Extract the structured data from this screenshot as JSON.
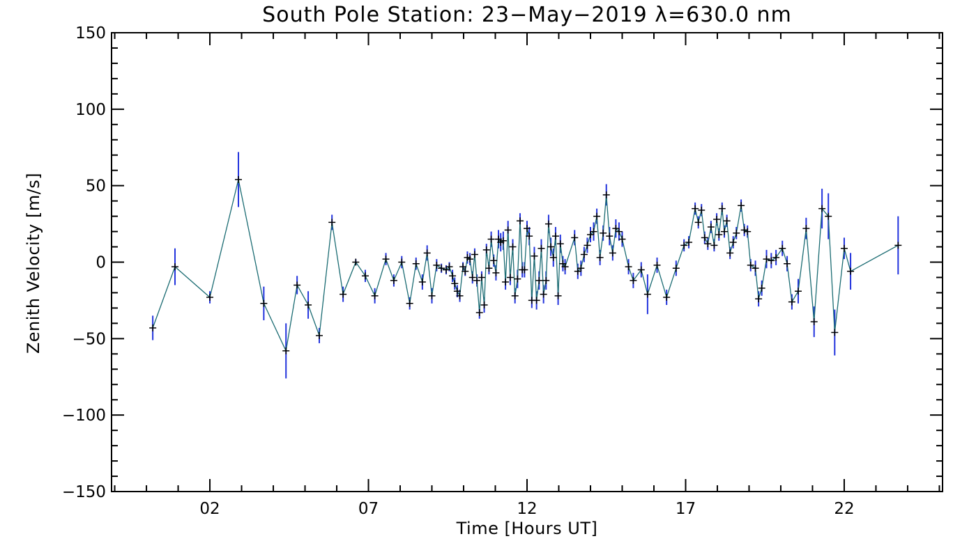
{
  "chart_data": {
    "type": "line",
    "title": "South Pole Station: 23−May−2019 λ=630.0 nm",
    "xlabel": "Time [Hours UT]",
    "ylabel": "Zenith Velocity [m/s]",
    "xlim": [
      -1.1,
      25.1
    ],
    "ylim": [
      -150,
      150
    ],
    "x_ticks": [
      2,
      7,
      12,
      17,
      22
    ],
    "x_tick_labels": [
      "02",
      "07",
      "12",
      "17",
      "22"
    ],
    "y_ticks": [
      -150,
      -100,
      -50,
      0,
      50,
      100,
      150
    ],
    "y_tick_labels": [
      "−150",
      "−100",
      "−50",
      "0",
      "50",
      "100",
      "150"
    ],
    "line_color": "#1a6b72",
    "error_color": "#2233dd",
    "marker_color": "#000000",
    "series": [
      {
        "name": "Zenith Velocity",
        "points": [
          [
            0.2,
            -43,
            8
          ],
          [
            0.9,
            -3,
            12
          ],
          [
            2.0,
            -23,
            4
          ],
          [
            2.9,
            54,
            18
          ],
          [
            3.7,
            -27,
            11
          ],
          [
            4.4,
            -58,
            18
          ],
          [
            4.75,
            -15,
            6
          ],
          [
            5.1,
            -28,
            9
          ],
          [
            5.45,
            -48,
            5
          ],
          [
            5.85,
            26,
            5
          ],
          [
            6.2,
            -21,
            5
          ],
          [
            6.6,
            0,
            2
          ],
          [
            6.9,
            -9,
            4
          ],
          [
            7.2,
            -22,
            5
          ],
          [
            7.55,
            2,
            4
          ],
          [
            7.8,
            -12,
            4
          ],
          [
            8.05,
            0,
            4
          ],
          [
            8.3,
            -27,
            4
          ],
          [
            8.5,
            -1,
            4
          ],
          [
            8.7,
            -13,
            5
          ],
          [
            8.85,
            6,
            5
          ],
          [
            9.0,
            -22,
            5
          ],
          [
            9.15,
            -2,
            4
          ],
          [
            9.3,
            -4,
            3
          ],
          [
            9.45,
            -5,
            3
          ],
          [
            9.55,
            -3,
            3
          ],
          [
            9.65,
            -9,
            4
          ],
          [
            9.72,
            -14,
            4
          ],
          [
            9.8,
            -19,
            4
          ],
          [
            9.88,
            -22,
            4
          ],
          [
            9.98,
            -3,
            3
          ],
          [
            10.05,
            -6,
            3
          ],
          [
            10.12,
            3,
            4
          ],
          [
            10.2,
            2,
            4
          ],
          [
            10.28,
            -10,
            4
          ],
          [
            10.35,
            5,
            4
          ],
          [
            10.42,
            -12,
            4
          ],
          [
            10.5,
            -33,
            4
          ],
          [
            10.57,
            -10,
            4
          ],
          [
            10.65,
            -28,
            5
          ],
          [
            10.72,
            8,
            4
          ],
          [
            10.8,
            -4,
            4
          ],
          [
            10.87,
            15,
            5
          ],
          [
            10.95,
            1,
            4
          ],
          [
            11.02,
            -7,
            5
          ],
          [
            11.1,
            15,
            6
          ],
          [
            11.17,
            13,
            6
          ],
          [
            11.25,
            14,
            6
          ],
          [
            11.32,
            -13,
            5
          ],
          [
            11.4,
            21,
            6
          ],
          [
            11.47,
            -10,
            5
          ],
          [
            11.55,
            10,
            5
          ],
          [
            11.62,
            -22,
            5
          ],
          [
            11.7,
            -11,
            6
          ],
          [
            11.78,
            27,
            5
          ],
          [
            11.85,
            -5,
            5
          ],
          [
            11.92,
            -5,
            5
          ],
          [
            12.0,
            22,
            5
          ],
          [
            12.07,
            17,
            6
          ],
          [
            12.15,
            -25,
            5
          ],
          [
            12.23,
            4,
            6
          ],
          [
            12.3,
            -25,
            6
          ],
          [
            12.38,
            -12,
            6
          ],
          [
            12.45,
            9,
            6
          ],
          [
            12.52,
            -21,
            6
          ],
          [
            12.6,
            -12,
            6
          ],
          [
            12.68,
            25,
            6
          ],
          [
            12.75,
            10,
            6
          ],
          [
            12.83,
            3,
            6
          ],
          [
            12.9,
            17,
            6
          ],
          [
            12.98,
            -22,
            6
          ],
          [
            13.05,
            12,
            6
          ],
          [
            13.13,
            -1,
            5
          ],
          [
            13.2,
            -3,
            5
          ],
          [
            13.5,
            16,
            5
          ],
          [
            13.6,
            -6,
            5
          ],
          [
            13.7,
            -4,
            5
          ],
          [
            13.8,
            5,
            5
          ],
          [
            13.9,
            11,
            5
          ],
          [
            14.0,
            18,
            5
          ],
          [
            14.1,
            20,
            6
          ],
          [
            14.2,
            30,
            5
          ],
          [
            14.3,
            3,
            5
          ],
          [
            14.4,
            19,
            5
          ],
          [
            14.5,
            44,
            7
          ],
          [
            14.6,
            17,
            6
          ],
          [
            14.7,
            6,
            5
          ],
          [
            14.8,
            22,
            6
          ],
          [
            14.9,
            20,
            6
          ],
          [
            15.0,
            15,
            5
          ],
          [
            15.2,
            -3,
            5
          ],
          [
            15.35,
            -12,
            5
          ],
          [
            15.6,
            -5,
            5
          ],
          [
            15.8,
            -21,
            13
          ],
          [
            16.1,
            -2,
            5
          ],
          [
            16.4,
            -23,
            5
          ],
          [
            16.7,
            -4,
            5
          ],
          [
            16.95,
            11,
            4
          ],
          [
            17.1,
            13,
            4
          ],
          [
            17.3,
            35,
            4
          ],
          [
            17.4,
            26,
            4
          ],
          [
            17.5,
            34,
            4
          ],
          [
            17.6,
            16,
            4
          ],
          [
            17.7,
            12,
            4
          ],
          [
            17.8,
            23,
            4
          ],
          [
            17.9,
            11,
            4
          ],
          [
            17.98,
            28,
            4
          ],
          [
            18.05,
            18,
            4
          ],
          [
            18.15,
            35,
            4
          ],
          [
            18.22,
            20,
            4
          ],
          [
            18.3,
            27,
            4
          ],
          [
            18.4,
            6,
            4
          ],
          [
            18.5,
            13,
            4
          ],
          [
            18.6,
            19,
            4
          ],
          [
            18.75,
            37,
            4
          ],
          [
            18.85,
            21,
            4
          ],
          [
            18.95,
            20,
            4
          ],
          [
            19.05,
            -2,
            4
          ],
          [
            19.2,
            -4,
            5
          ],
          [
            19.3,
            -24,
            5
          ],
          [
            19.4,
            -17,
            5
          ],
          [
            19.55,
            2,
            6
          ],
          [
            19.7,
            1,
            5
          ],
          [
            19.85,
            3,
            5
          ],
          [
            20.05,
            9,
            5
          ],
          [
            20.2,
            -1,
            5
          ],
          [
            20.35,
            -26,
            5
          ],
          [
            20.55,
            -19,
            8
          ],
          [
            20.8,
            22,
            7
          ],
          [
            21.05,
            -39,
            10
          ],
          [
            21.3,
            35,
            13
          ],
          [
            21.5,
            30,
            15
          ],
          [
            21.7,
            -46,
            15
          ],
          [
            22.0,
            9,
            7
          ],
          [
            22.2,
            -6,
            12
          ],
          [
            23.7,
            11,
            19
          ]
        ]
      }
    ]
  }
}
